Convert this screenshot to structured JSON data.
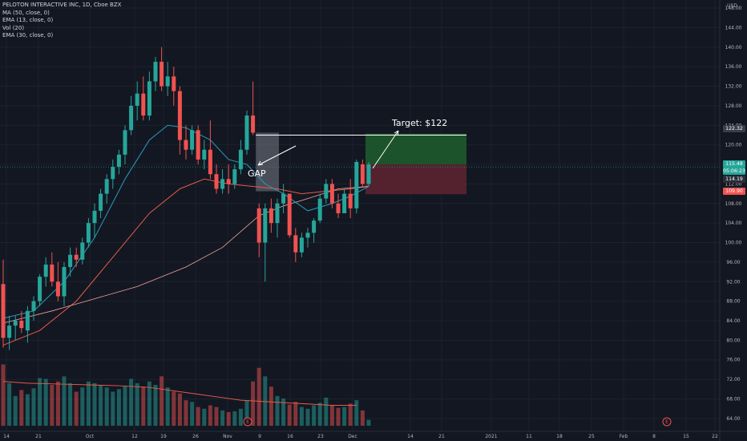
{
  "legend": {
    "title": "PELOTON INTERACTIVE INC, 1D, Cboe BZX",
    "ma50": "MA (50, close, 0)",
    "ema13": "EMA (13, close, 0)",
    "vol": "Vol (20)",
    "ema30": "EMA (30, close, 0)"
  },
  "currency": "USD",
  "price_tags": [
    "122.32",
    "115.48",
    "05:06:23",
    "114.19",
    "109.90"
  ],
  "annotations": {
    "gap": "GAP",
    "target": "Target: $122"
  },
  "earnings_marker": "E",
  "colors": {
    "background": "#131722",
    "up": "#26a69a",
    "down": "#ef5350",
    "ema13": "#2a9bbe",
    "ema30": "#e65b47",
    "profit_zone": "#1f5a2b",
    "loss_zone": "#5b2430"
  },
  "chart_data": {
    "type": "candlestick",
    "title": "PELOTON INTERACTIVE INC, 1D, Cboe BZX",
    "y_ticks": [
      64,
      68,
      72,
      76,
      80,
      84,
      88,
      92,
      96,
      100,
      104,
      108,
      112,
      116,
      120,
      124,
      128,
      132,
      136,
      140,
      144,
      148
    ],
    "x_ticks": [
      "14",
      "21",
      "Oct",
      "12",
      "19",
      "26",
      "Nov",
      "9",
      "16",
      "23",
      "Dec",
      "14",
      "21",
      "2021",
      "11",
      "18",
      "25",
      "Feb",
      "8",
      "15",
      "22"
    ],
    "ylim": [
      62.5,
      148.5
    ],
    "candles": [
      {
        "o": 91.5,
        "h": 96.5,
        "l": 78.5,
        "c": 80.5,
        "v": 72
      },
      {
        "o": 80.5,
        "h": 85,
        "l": 78,
        "c": 83,
        "v": 50
      },
      {
        "o": 83,
        "h": 85,
        "l": 80,
        "c": 84,
        "v": 35
      },
      {
        "o": 84,
        "h": 86,
        "l": 81.5,
        "c": 82.5,
        "v": 42
      },
      {
        "o": 82,
        "h": 87,
        "l": 79.5,
        "c": 86,
        "v": 37
      },
      {
        "o": 86,
        "h": 89,
        "l": 84,
        "c": 88,
        "v": 44
      },
      {
        "o": 88,
        "h": 93.5,
        "l": 87,
        "c": 93,
        "v": 56
      },
      {
        "o": 93,
        "h": 97,
        "l": 91,
        "c": 95.5,
        "v": 55
      },
      {
        "o": 95.5,
        "h": 98,
        "l": 91,
        "c": 92,
        "v": 48
      },
      {
        "o": 92,
        "h": 96,
        "l": 88,
        "c": 89,
        "v": 52
      },
      {
        "o": 89,
        "h": 96,
        "l": 87,
        "c": 95,
        "v": 58
      },
      {
        "o": 95,
        "h": 99,
        "l": 93,
        "c": 97.5,
        "v": 50
      },
      {
        "o": 97.5,
        "h": 99,
        "l": 95,
        "c": 96.5,
        "v": 40
      },
      {
        "o": 96.5,
        "h": 101,
        "l": 95.5,
        "c": 100,
        "v": 45
      },
      {
        "o": 100,
        "h": 105,
        "l": 99,
        "c": 104,
        "v": 52
      },
      {
        "o": 104,
        "h": 108,
        "l": 101,
        "c": 106.5,
        "v": 50
      },
      {
        "o": 106.5,
        "h": 111,
        "l": 105,
        "c": 110,
        "v": 48
      },
      {
        "o": 110,
        "h": 114,
        "l": 108,
        "c": 113,
        "v": 45
      },
      {
        "o": 113,
        "h": 117,
        "l": 111,
        "c": 115.5,
        "v": 40
      },
      {
        "o": 115.5,
        "h": 119,
        "l": 114,
        "c": 118,
        "v": 43
      },
      {
        "o": 118,
        "h": 124,
        "l": 116,
        "c": 123,
        "v": 47
      },
      {
        "o": 123,
        "h": 130,
        "l": 122,
        "c": 128,
        "v": 55
      },
      {
        "o": 128,
        "h": 133,
        "l": 125,
        "c": 130.5,
        "v": 50
      },
      {
        "o": 130.5,
        "h": 134,
        "l": 125,
        "c": 126,
        "v": 46
      },
      {
        "o": 126,
        "h": 135,
        "l": 125,
        "c": 133,
        "v": 52
      },
      {
        "o": 133,
        "h": 138,
        "l": 131,
        "c": 137,
        "v": 48
      },
      {
        "o": 137,
        "h": 140,
        "l": 131,
        "c": 132,
        "v": 58
      },
      {
        "o": 132,
        "h": 137,
        "l": 130,
        "c": 134,
        "v": 45
      },
      {
        "o": 134,
        "h": 136,
        "l": 128,
        "c": 131,
        "v": 40
      },
      {
        "o": 131,
        "h": 132,
        "l": 118,
        "c": 121,
        "v": 38
      },
      {
        "o": 121,
        "h": 124,
        "l": 117,
        "c": 119,
        "v": 30
      },
      {
        "o": 119,
        "h": 124,
        "l": 118,
        "c": 123,
        "v": 28
      },
      {
        "o": 123,
        "h": 124,
        "l": 116,
        "c": 117,
        "v": 22
      },
      {
        "o": 117,
        "h": 121,
        "l": 115,
        "c": 119,
        "v": 20
      },
      {
        "o": 119,
        "h": 125,
        "l": 113,
        "c": 114,
        "v": 24
      },
      {
        "o": 114,
        "h": 116,
        "l": 110,
        "c": 111,
        "v": 22
      },
      {
        "o": 111,
        "h": 115,
        "l": 110,
        "c": 113,
        "v": 18
      },
      {
        "o": 113,
        "h": 116,
        "l": 110,
        "c": 112,
        "v": 16
      },
      {
        "o": 112,
        "h": 116,
        "l": 111,
        "c": 115,
        "v": 17
      },
      {
        "o": 115,
        "h": 121,
        "l": 114,
        "c": 119,
        "v": 20
      },
      {
        "o": 119,
        "h": 127,
        "l": 118,
        "c": 126,
        "v": 30
      },
      {
        "o": 126,
        "h": 133,
        "l": 122,
        "c": 122.5,
        "v": 52
      },
      {
        "o": 107,
        "h": 108,
        "l": 97,
        "c": 100,
        "v": 68
      },
      {
        "o": 100,
        "h": 108,
        "l": 92,
        "c": 107,
        "v": 58
      },
      {
        "o": 107,
        "h": 109,
        "l": 102,
        "c": 104,
        "v": 46
      },
      {
        "o": 104,
        "h": 109,
        "l": 101,
        "c": 108,
        "v": 35
      },
      {
        "o": 108,
        "h": 112,
        "l": 106,
        "c": 110,
        "v": 32
      },
      {
        "o": 110,
        "h": 110,
        "l": 101,
        "c": 101.5,
        "v": 25
      },
      {
        "o": 101.5,
        "h": 103,
        "l": 96,
        "c": 98,
        "v": 28
      },
      {
        "o": 98,
        "h": 102,
        "l": 97,
        "c": 101,
        "v": 22
      },
      {
        "o": 101,
        "h": 103,
        "l": 99,
        "c": 102,
        "v": 20
      },
      {
        "o": 102,
        "h": 105,
        "l": 100,
        "c": 104.5,
        "v": 24
      },
      {
        "o": 104.5,
        "h": 110,
        "l": 104,
        "c": 109,
        "v": 27
      },
      {
        "o": 109,
        "h": 113,
        "l": 108,
        "c": 112,
        "v": 33
      },
      {
        "o": 112,
        "h": 113,
        "l": 107,
        "c": 108,
        "v": 24
      },
      {
        "o": 108,
        "h": 110,
        "l": 105,
        "c": 106,
        "v": 21
      },
      {
        "o": 106,
        "h": 111,
        "l": 106,
        "c": 110,
        "v": 22
      },
      {
        "o": 110,
        "h": 113,
        "l": 105,
        "c": 107,
        "v": 26
      },
      {
        "o": 107,
        "h": 117,
        "l": 106,
        "c": 116.5,
        "v": 30
      },
      {
        "o": 116,
        "h": 117,
        "l": 111.5,
        "c": 112,
        "v": 18
      },
      {
        "o": 112,
        "h": 116.5,
        "l": 111.5,
        "c": 116,
        "v": 7
      }
    ],
    "ma50": [
      [
        0,
        83.5
      ],
      [
        8,
        86
      ],
      [
        15,
        88.5
      ],
      [
        22,
        91
      ],
      [
        30,
        95
      ],
      [
        36,
        99
      ],
      [
        42,
        105.5
      ],
      [
        46,
        107.5
      ],
      [
        50,
        109
      ],
      [
        55,
        111
      ],
      [
        60,
        111.5
      ]
    ],
    "ema13": [
      [
        0,
        84.5
      ],
      [
        5,
        86
      ],
      [
        10,
        92
      ],
      [
        15,
        101
      ],
      [
        20,
        113
      ],
      [
        24,
        121
      ],
      [
        27,
        124
      ],
      [
        30,
        123.5
      ],
      [
        34,
        121
      ],
      [
        37,
        117
      ],
      [
        40,
        116
      ],
      [
        43,
        112
      ],
      [
        46,
        110
      ],
      [
        50,
        106.5
      ],
      [
        54,
        108
      ],
      [
        57,
        109.5
      ],
      [
        60,
        111.5
      ]
    ],
    "ema30": [
      [
        0,
        79
      ],
      [
        6,
        82
      ],
      [
        12,
        88
      ],
      [
        18,
        97
      ],
      [
        24,
        106
      ],
      [
        29,
        111
      ],
      [
        33,
        113
      ],
      [
        37,
        112
      ],
      [
        41,
        111.5
      ],
      [
        45,
        111
      ],
      [
        49,
        110
      ],
      [
        53,
        110.5
      ],
      [
        57,
        111
      ],
      [
        60,
        111.5
      ]
    ],
    "volume_ma": [
      [
        0,
        52
      ],
      [
        4,
        50
      ],
      [
        9,
        49
      ],
      [
        14,
        48
      ],
      [
        19,
        47
      ],
      [
        24,
        45
      ],
      [
        29,
        40
      ],
      [
        34,
        35
      ],
      [
        39,
        30
      ],
      [
        44,
        28
      ],
      [
        49,
        26
      ],
      [
        54,
        24
      ],
      [
        58,
        24
      ]
    ],
    "gap_zone": {
      "from_bar": 42,
      "to_bar": 45,
      "low": 110.5,
      "high": 122.5
    },
    "target": {
      "price": 122,
      "line_from_bar": 42
    },
    "position": {
      "entry": 116,
      "target": 122.3,
      "stop": 109.9
    },
    "volume_max": 80
  }
}
